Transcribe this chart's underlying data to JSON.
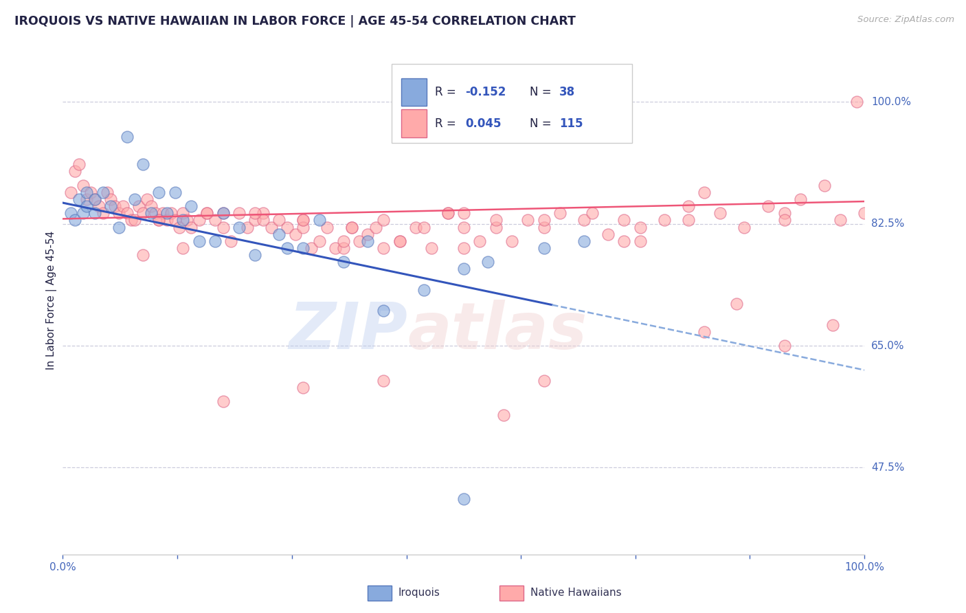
{
  "title": "IROQUOIS VS NATIVE HAWAIIAN IN LABOR FORCE | AGE 45-54 CORRELATION CHART",
  "source_text": "Source: ZipAtlas.com",
  "ylabel": "In Labor Force | Age 45-54",
  "xlim": [
    0.0,
    1.0
  ],
  "ylim": [
    0.35,
    1.08
  ],
  "yticks": [
    0.475,
    0.65,
    0.825,
    1.0
  ],
  "ytick_labels": [
    "47.5%",
    "65.0%",
    "82.5%",
    "100.0%"
  ],
  "title_color": "#222244",
  "tick_color": "#4466bb",
  "blue_color": "#88aadd",
  "blue_edge_color": "#5577bb",
  "pink_color": "#ffaaaa",
  "pink_edge_color": "#dd6688",
  "trend_blue_color": "#3355bb",
  "trend_pink_color": "#ee5577",
  "background_color": "#ffffff",
  "grid_color": "#ccccdd",
  "source_color": "#aaaaaa",
  "blue_scatter_x": [
    0.01,
    0.015,
    0.02,
    0.025,
    0.03,
    0.03,
    0.04,
    0.04,
    0.05,
    0.06,
    0.07,
    0.08,
    0.09,
    0.1,
    0.11,
    0.12,
    0.13,
    0.14,
    0.15,
    0.16,
    0.17,
    0.19,
    0.2,
    0.22,
    0.24,
    0.27,
    0.28,
    0.3,
    0.32,
    0.35,
    0.38,
    0.5,
    0.53,
    0.6,
    0.65,
    0.5,
    0.4,
    0.45
  ],
  "blue_scatter_y": [
    0.84,
    0.83,
    0.86,
    0.84,
    0.87,
    0.85,
    0.86,
    0.84,
    0.87,
    0.85,
    0.82,
    0.95,
    0.86,
    0.91,
    0.84,
    0.87,
    0.84,
    0.87,
    0.83,
    0.85,
    0.8,
    0.8,
    0.84,
    0.82,
    0.78,
    0.81,
    0.79,
    0.79,
    0.83,
    0.77,
    0.8,
    0.76,
    0.77,
    0.79,
    0.8,
    0.43,
    0.7,
    0.73
  ],
  "pink_scatter_x": [
    0.01,
    0.015,
    0.02,
    0.025,
    0.03,
    0.035,
    0.04,
    0.045,
    0.05,
    0.055,
    0.06,
    0.065,
    0.07,
    0.075,
    0.08,
    0.085,
    0.09,
    0.095,
    0.1,
    0.105,
    0.11,
    0.115,
    0.12,
    0.125,
    0.13,
    0.135,
    0.14,
    0.145,
    0.15,
    0.155,
    0.16,
    0.17,
    0.18,
    0.19,
    0.2,
    0.21,
    0.22,
    0.23,
    0.24,
    0.25,
    0.26,
    0.27,
    0.28,
    0.29,
    0.3,
    0.31,
    0.32,
    0.33,
    0.34,
    0.35,
    0.36,
    0.37,
    0.38,
    0.39,
    0.4,
    0.42,
    0.44,
    0.46,
    0.48,
    0.5,
    0.52,
    0.54,
    0.56,
    0.58,
    0.6,
    0.62,
    0.65,
    0.68,
    0.7,
    0.72,
    0.75,
    0.78,
    0.8,
    0.82,
    0.85,
    0.88,
    0.9,
    0.92,
    0.95,
    0.97,
    0.99,
    0.1,
    0.15,
    0.2,
    0.25,
    0.3,
    0.35,
    0.4,
    0.45,
    0.5,
    0.12,
    0.18,
    0.24,
    0.3,
    0.36,
    0.42,
    0.48,
    0.54,
    0.6,
    0.66,
    0.72,
    0.78,
    0.84,
    0.9,
    0.96,
    0.5,
    0.6,
    0.7,
    0.8,
    0.9,
    1.0,
    0.2,
    0.3,
    0.4,
    0.55
  ],
  "pink_scatter_y": [
    0.87,
    0.9,
    0.91,
    0.88,
    0.86,
    0.87,
    0.86,
    0.85,
    0.84,
    0.87,
    0.86,
    0.85,
    0.84,
    0.85,
    0.84,
    0.83,
    0.83,
    0.85,
    0.84,
    0.86,
    0.85,
    0.84,
    0.83,
    0.84,
    0.83,
    0.84,
    0.83,
    0.82,
    0.84,
    0.83,
    0.82,
    0.83,
    0.84,
    0.83,
    0.82,
    0.8,
    0.84,
    0.82,
    0.83,
    0.84,
    0.82,
    0.83,
    0.82,
    0.81,
    0.83,
    0.79,
    0.8,
    0.82,
    0.79,
    0.79,
    0.82,
    0.8,
    0.81,
    0.82,
    0.83,
    0.8,
    0.82,
    0.79,
    0.84,
    0.82,
    0.8,
    0.82,
    0.8,
    0.83,
    0.82,
    0.84,
    0.83,
    0.81,
    0.83,
    0.82,
    0.83,
    0.85,
    0.87,
    0.84,
    0.82,
    0.85,
    0.84,
    0.86,
    0.88,
    0.83,
    1.0,
    0.78,
    0.79,
    0.84,
    0.83,
    0.82,
    0.8,
    0.79,
    0.82,
    0.84,
    0.83,
    0.84,
    0.84,
    0.83,
    0.82,
    0.8,
    0.84,
    0.83,
    0.83,
    0.84,
    0.8,
    0.83,
    0.71,
    0.83,
    0.68,
    0.79,
    0.6,
    0.8,
    0.67,
    0.65,
    0.84,
    0.57,
    0.59,
    0.6,
    0.55
  ]
}
